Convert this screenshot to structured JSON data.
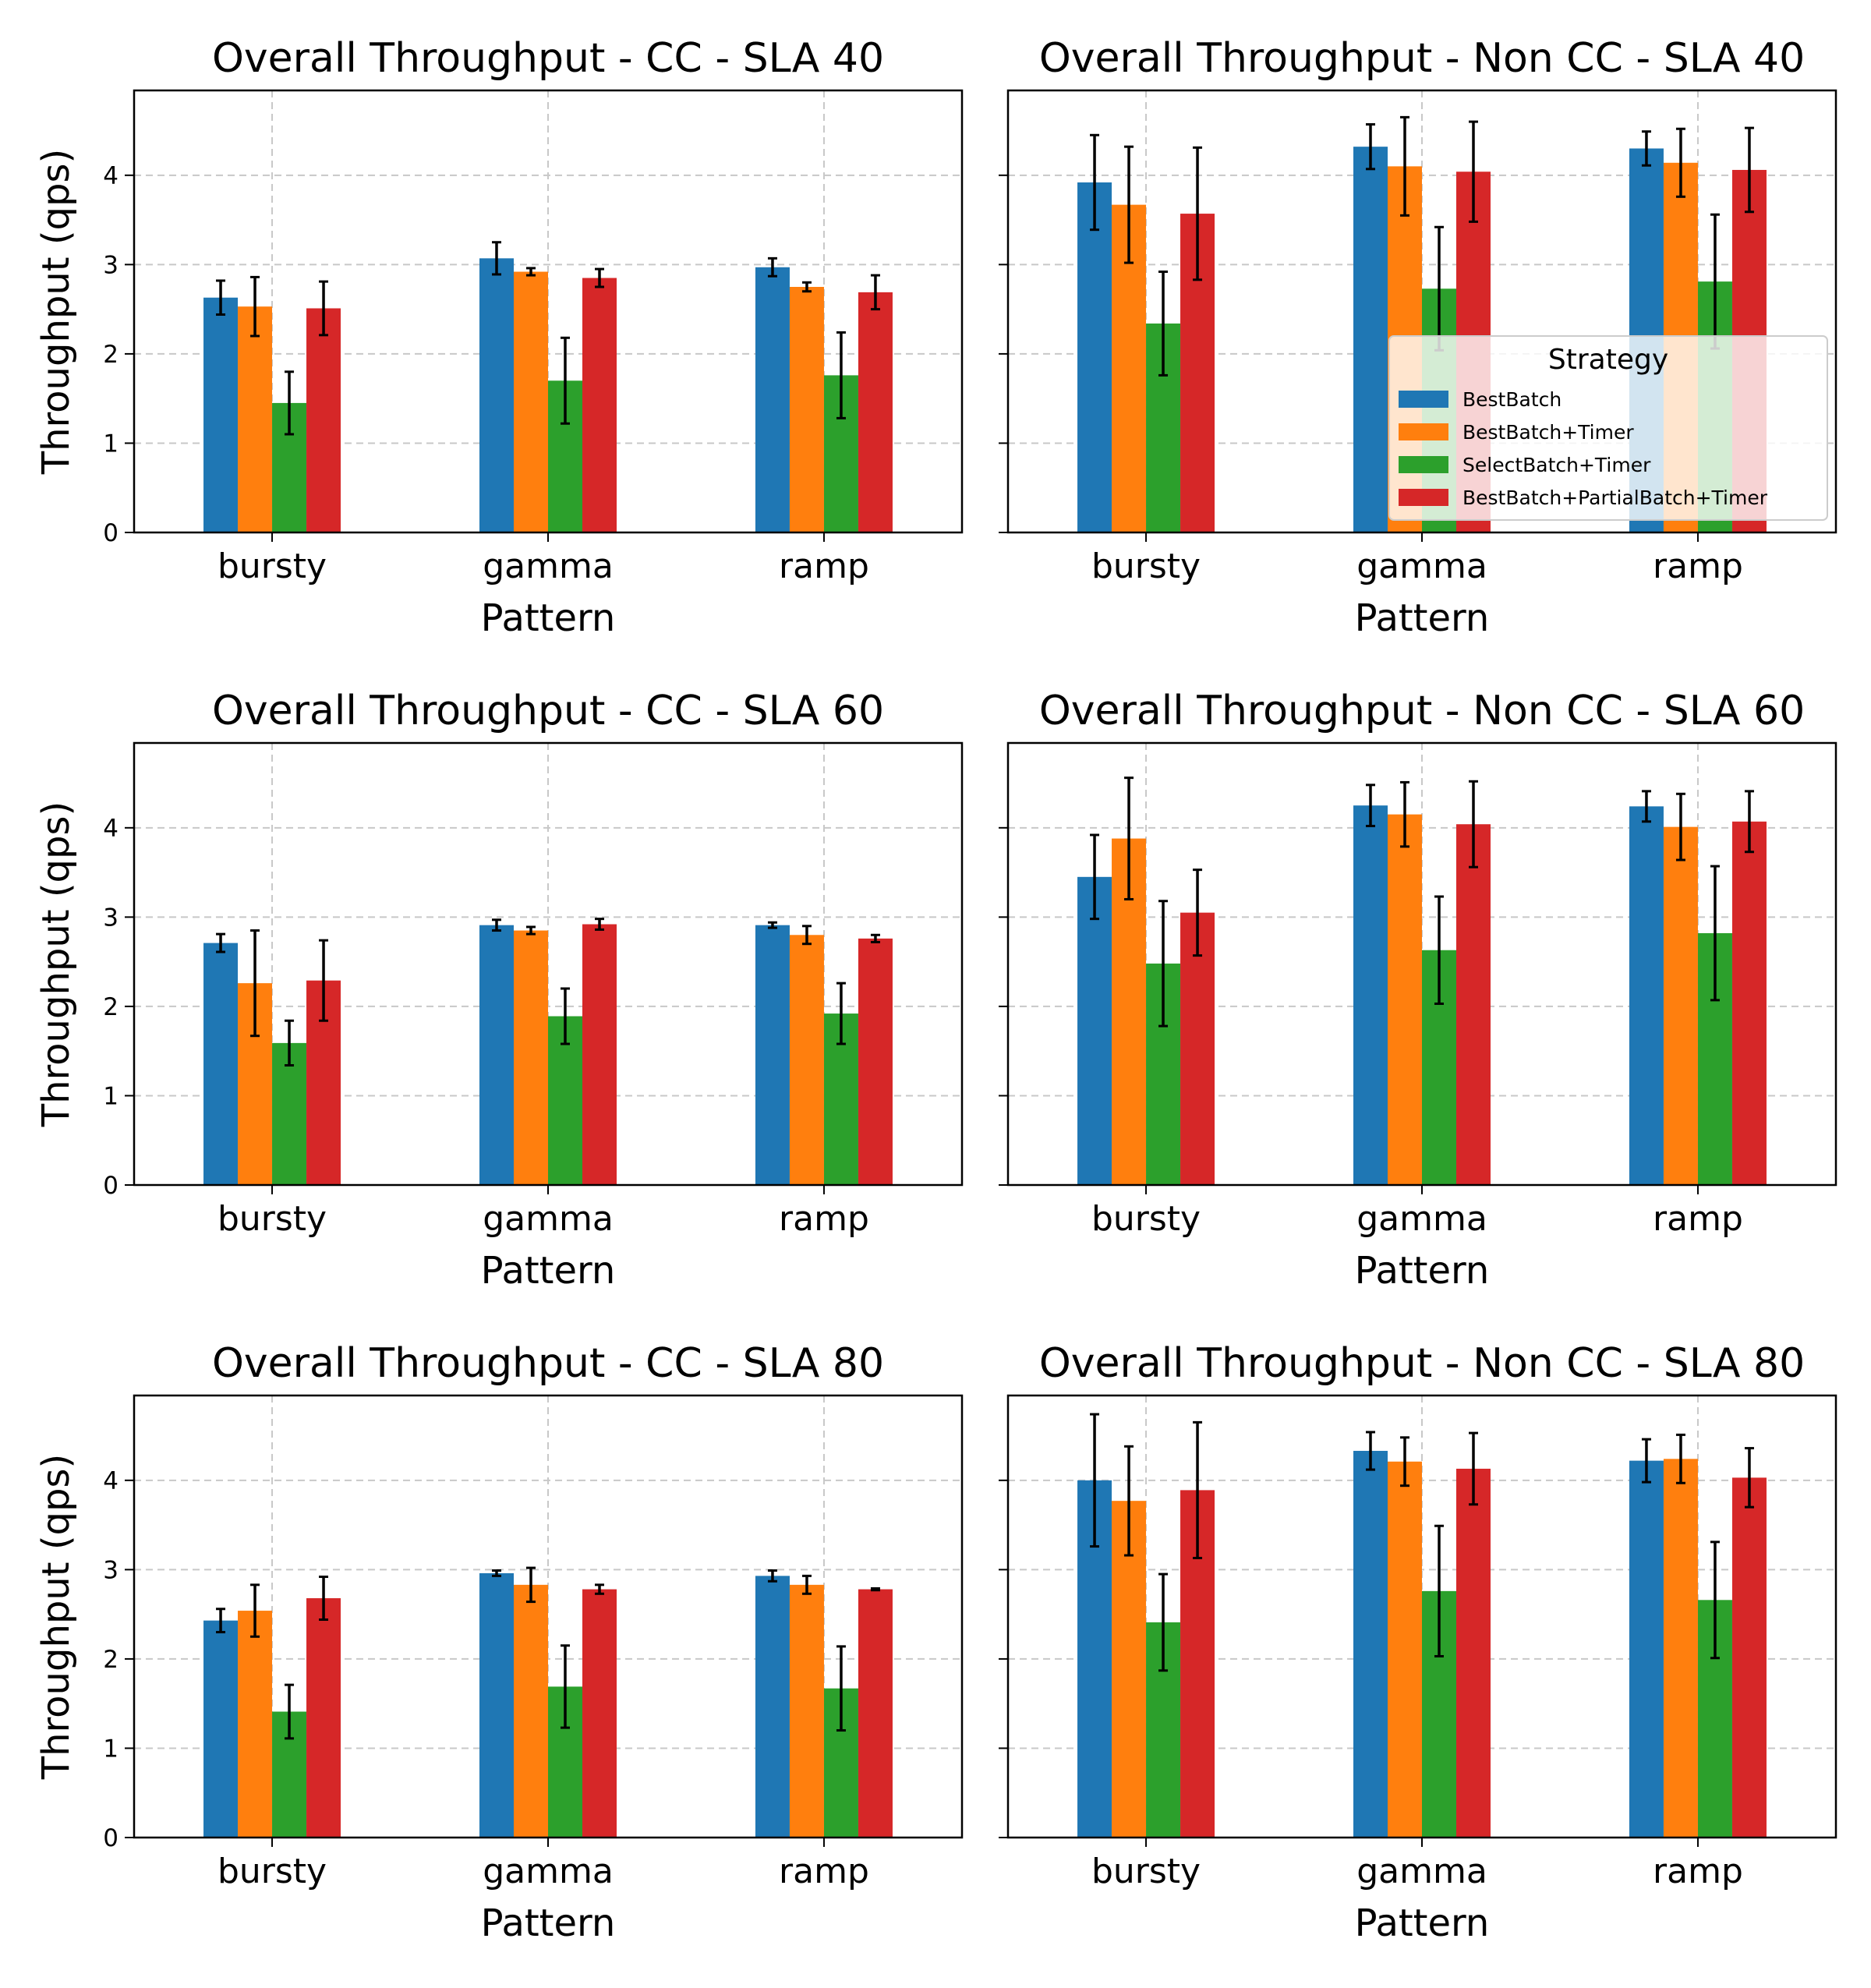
{
  "legend": {
    "title": "Strategy",
    "placement": "lower-right of top-right panel",
    "entries": [
      {
        "name": "BestBatch",
        "color": "#1f77b4"
      },
      {
        "name": "BestBatch+Timer",
        "color": "#ff7f0e"
      },
      {
        "name": "SelectBatch+Timer",
        "color": "#2ca02c"
      },
      {
        "name": "BestBatch+PartialBatch+Timer",
        "color": "#d62728"
      }
    ]
  },
  "chart_data": [
    {
      "type": "bar",
      "title": "Overall Throughput - CC - SLA 40",
      "xlabel": "Pattern",
      "ylabel": "Throughput (qps)",
      "ylim": [
        0,
        4.95
      ],
      "yticks": [
        "0",
        "1",
        "2",
        "3",
        "4"
      ],
      "grid": true,
      "categories": [
        "bursty",
        "gamma",
        "ramp"
      ],
      "series": [
        {
          "name": "BestBatch",
          "values": [
            2.63,
            3.07,
            2.97
          ],
          "errors": [
            0.19,
            0.18,
            0.1
          ]
        },
        {
          "name": "BestBatch+Timer",
          "values": [
            2.53,
            2.92,
            2.75
          ],
          "errors": [
            0.33,
            0.04,
            0.05
          ]
        },
        {
          "name": "SelectBatch+Timer",
          "values": [
            1.45,
            1.7,
            1.76
          ],
          "errors": [
            0.35,
            0.48,
            0.48
          ]
        },
        {
          "name": "BestBatch+PartialBatch+Timer",
          "values": [
            2.51,
            2.85,
            2.69
          ],
          "errors": [
            0.3,
            0.1,
            0.19
          ]
        }
      ]
    },
    {
      "type": "bar",
      "title": "Overall Throughput - Non CC - SLA 40",
      "xlabel": "Pattern",
      "ylabel": "",
      "ylim": [
        0,
        4.95
      ],
      "yticks": [],
      "grid": true,
      "categories": [
        "bursty",
        "gamma",
        "ramp"
      ],
      "series": [
        {
          "name": "BestBatch",
          "values": [
            3.92,
            4.32,
            4.3
          ],
          "errors": [
            0.53,
            0.25,
            0.19
          ]
        },
        {
          "name": "BestBatch+Timer",
          "values": [
            3.67,
            4.1,
            4.14
          ],
          "errors": [
            0.65,
            0.55,
            0.38
          ]
        },
        {
          "name": "SelectBatch+Timer",
          "values": [
            2.34,
            2.73,
            2.81
          ],
          "errors": [
            0.58,
            0.69,
            0.75
          ]
        },
        {
          "name": "BestBatch+PartialBatch+Timer",
          "values": [
            3.57,
            4.04,
            4.06
          ],
          "errors": [
            0.74,
            0.56,
            0.47
          ]
        }
      ]
    },
    {
      "type": "bar",
      "title": "Overall Throughput - CC - SLA 60",
      "xlabel": "Pattern",
      "ylabel": "Throughput (qps)",
      "ylim": [
        0,
        4.95
      ],
      "yticks": [
        "0",
        "1",
        "2",
        "3",
        "4"
      ],
      "grid": true,
      "categories": [
        "bursty",
        "gamma",
        "ramp"
      ],
      "series": [
        {
          "name": "BestBatch",
          "values": [
            2.71,
            2.91,
            2.91
          ],
          "errors": [
            0.1,
            0.06,
            0.03
          ]
        },
        {
          "name": "BestBatch+Timer",
          "values": [
            2.26,
            2.85,
            2.8
          ],
          "errors": [
            0.59,
            0.04,
            0.1
          ]
        },
        {
          "name": "SelectBatch+Timer",
          "values": [
            1.59,
            1.89,
            1.92
          ],
          "errors": [
            0.25,
            0.31,
            0.34
          ]
        },
        {
          "name": "BestBatch+PartialBatch+Timer",
          "values": [
            2.29,
            2.92,
            2.76
          ],
          "errors": [
            0.45,
            0.06,
            0.04
          ]
        }
      ]
    },
    {
      "type": "bar",
      "title": "Overall Throughput - Non CC - SLA 60",
      "xlabel": "Pattern",
      "ylabel": "",
      "ylim": [
        0,
        4.95
      ],
      "yticks": [],
      "grid": true,
      "categories": [
        "bursty",
        "gamma",
        "ramp"
      ],
      "series": [
        {
          "name": "BestBatch",
          "values": [
            3.45,
            4.25,
            4.24
          ],
          "errors": [
            0.47,
            0.23,
            0.17
          ]
        },
        {
          "name": "BestBatch+Timer",
          "values": [
            3.88,
            4.15,
            4.01
          ],
          "errors": [
            0.68,
            0.36,
            0.37
          ]
        },
        {
          "name": "SelectBatch+Timer",
          "values": [
            2.48,
            2.63,
            2.82
          ],
          "errors": [
            0.7,
            0.6,
            0.75
          ]
        },
        {
          "name": "BestBatch+PartialBatch+Timer",
          "values": [
            3.05,
            4.04,
            4.07
          ],
          "errors": [
            0.48,
            0.48,
            0.34
          ]
        }
      ]
    },
    {
      "type": "bar",
      "title": "Overall Throughput - CC - SLA 80",
      "xlabel": "Pattern",
      "ylabel": "Throughput (qps)",
      "ylim": [
        0,
        4.95
      ],
      "yticks": [
        "0",
        "1",
        "2",
        "3",
        "4"
      ],
      "grid": true,
      "categories": [
        "bursty",
        "gamma",
        "ramp"
      ],
      "series": [
        {
          "name": "BestBatch",
          "values": [
            2.43,
            2.96,
            2.93
          ],
          "errors": [
            0.13,
            0.03,
            0.06
          ]
        },
        {
          "name": "BestBatch+Timer",
          "values": [
            2.54,
            2.83,
            2.83
          ],
          "errors": [
            0.29,
            0.19,
            0.1
          ]
        },
        {
          "name": "SelectBatch+Timer",
          "values": [
            1.41,
            1.69,
            1.67
          ],
          "errors": [
            0.3,
            0.46,
            0.47
          ]
        },
        {
          "name": "BestBatch+PartialBatch+Timer",
          "values": [
            2.68,
            2.78,
            2.78
          ],
          "errors": [
            0.24,
            0.05,
            0.01
          ]
        }
      ]
    },
    {
      "type": "bar",
      "title": "Overall Throughput - Non CC - SLA 80",
      "xlabel": "Pattern",
      "ylabel": "",
      "ylim": [
        0,
        4.95
      ],
      "yticks": [],
      "grid": true,
      "categories": [
        "bursty",
        "gamma",
        "ramp"
      ],
      "series": [
        {
          "name": "BestBatch",
          "values": [
            4.0,
            4.33,
            4.22
          ],
          "errors": [
            0.74,
            0.21,
            0.24
          ]
        },
        {
          "name": "BestBatch+Timer",
          "values": [
            3.77,
            4.21,
            4.24
          ],
          "errors": [
            0.61,
            0.27,
            0.27
          ]
        },
        {
          "name": "SelectBatch+Timer",
          "values": [
            2.41,
            2.76,
            2.66
          ],
          "errors": [
            0.54,
            0.73,
            0.65
          ]
        },
        {
          "name": "BestBatch+PartialBatch+Timer",
          "values": [
            3.89,
            4.13,
            4.03
          ],
          "errors": [
            0.76,
            0.4,
            0.33
          ]
        }
      ]
    }
  ]
}
